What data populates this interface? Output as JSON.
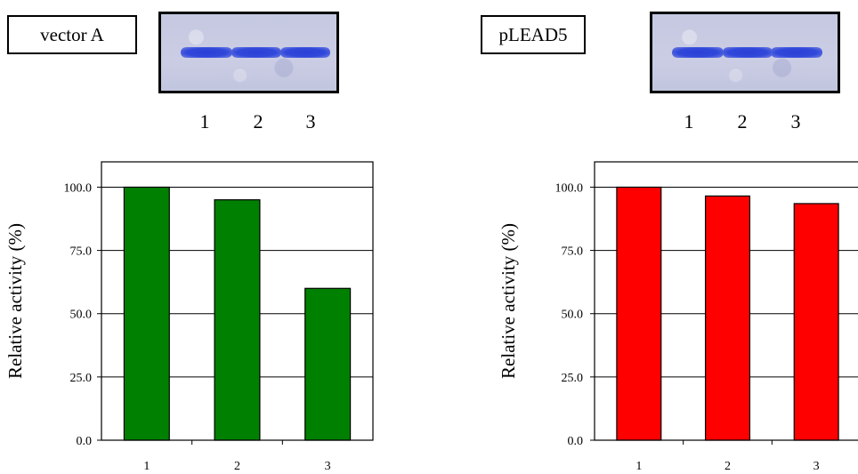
{
  "panels": [
    {
      "label": "vector A",
      "gel_lanes": [
        "1",
        "2",
        "3"
      ],
      "chart_data": {
        "type": "bar",
        "categories": [
          "1",
          "2",
          "3"
        ],
        "values": [
          100.0,
          95.0,
          60.0
        ],
        "ylabel": "Relative activity (%)",
        "yticks": [
          "0.0",
          "25.0",
          "50.0",
          "75.0",
          "100.0"
        ],
        "ylim": [
          0,
          110
        ],
        "grid": true,
        "bar_color": "#008000"
      }
    },
    {
      "label": "pLEAD5",
      "gel_lanes": [
        "1",
        "2",
        "3"
      ],
      "chart_data": {
        "type": "bar",
        "categories": [
          "1",
          "2",
          "3"
        ],
        "values": [
          100.0,
          96.5,
          93.5
        ],
        "ylabel": "Relative activity (%)",
        "yticks": [
          "0.0",
          "25.0",
          "50.0",
          "75.0",
          "100.0"
        ],
        "ylim": [
          0,
          110
        ],
        "grid": true,
        "bar_color": "#ff0000"
      }
    }
  ]
}
